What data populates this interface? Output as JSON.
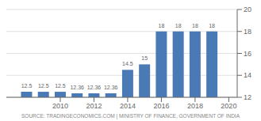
{
  "chart_data": {
    "type": "bar",
    "x": [
      2008,
      2009,
      2010,
      2011,
      2012,
      2013,
      2014,
      2015,
      2016,
      2017,
      2018,
      2019
    ],
    "values": [
      12.5,
      12.5,
      12.5,
      12.36,
      12.36,
      12.36,
      14.5,
      15,
      18,
      18,
      18,
      18
    ],
    "color": "#4a7ab5",
    "xlim": [
      2006.8,
      2020.5
    ],
    "xticks": [
      2010,
      2012,
      2014,
      2016,
      2018,
      2020
    ],
    "ylim": [
      12,
      20
    ],
    "yticks": [
      12,
      14,
      16,
      18,
      20
    ],
    "grid": true,
    "data_labels": true,
    "annotations": [
      "SOURCE: TRADINGECONOMICS.COM | MINISTRY OF FINANCE, GOVERNMENT OF INDIA"
    ]
  }
}
